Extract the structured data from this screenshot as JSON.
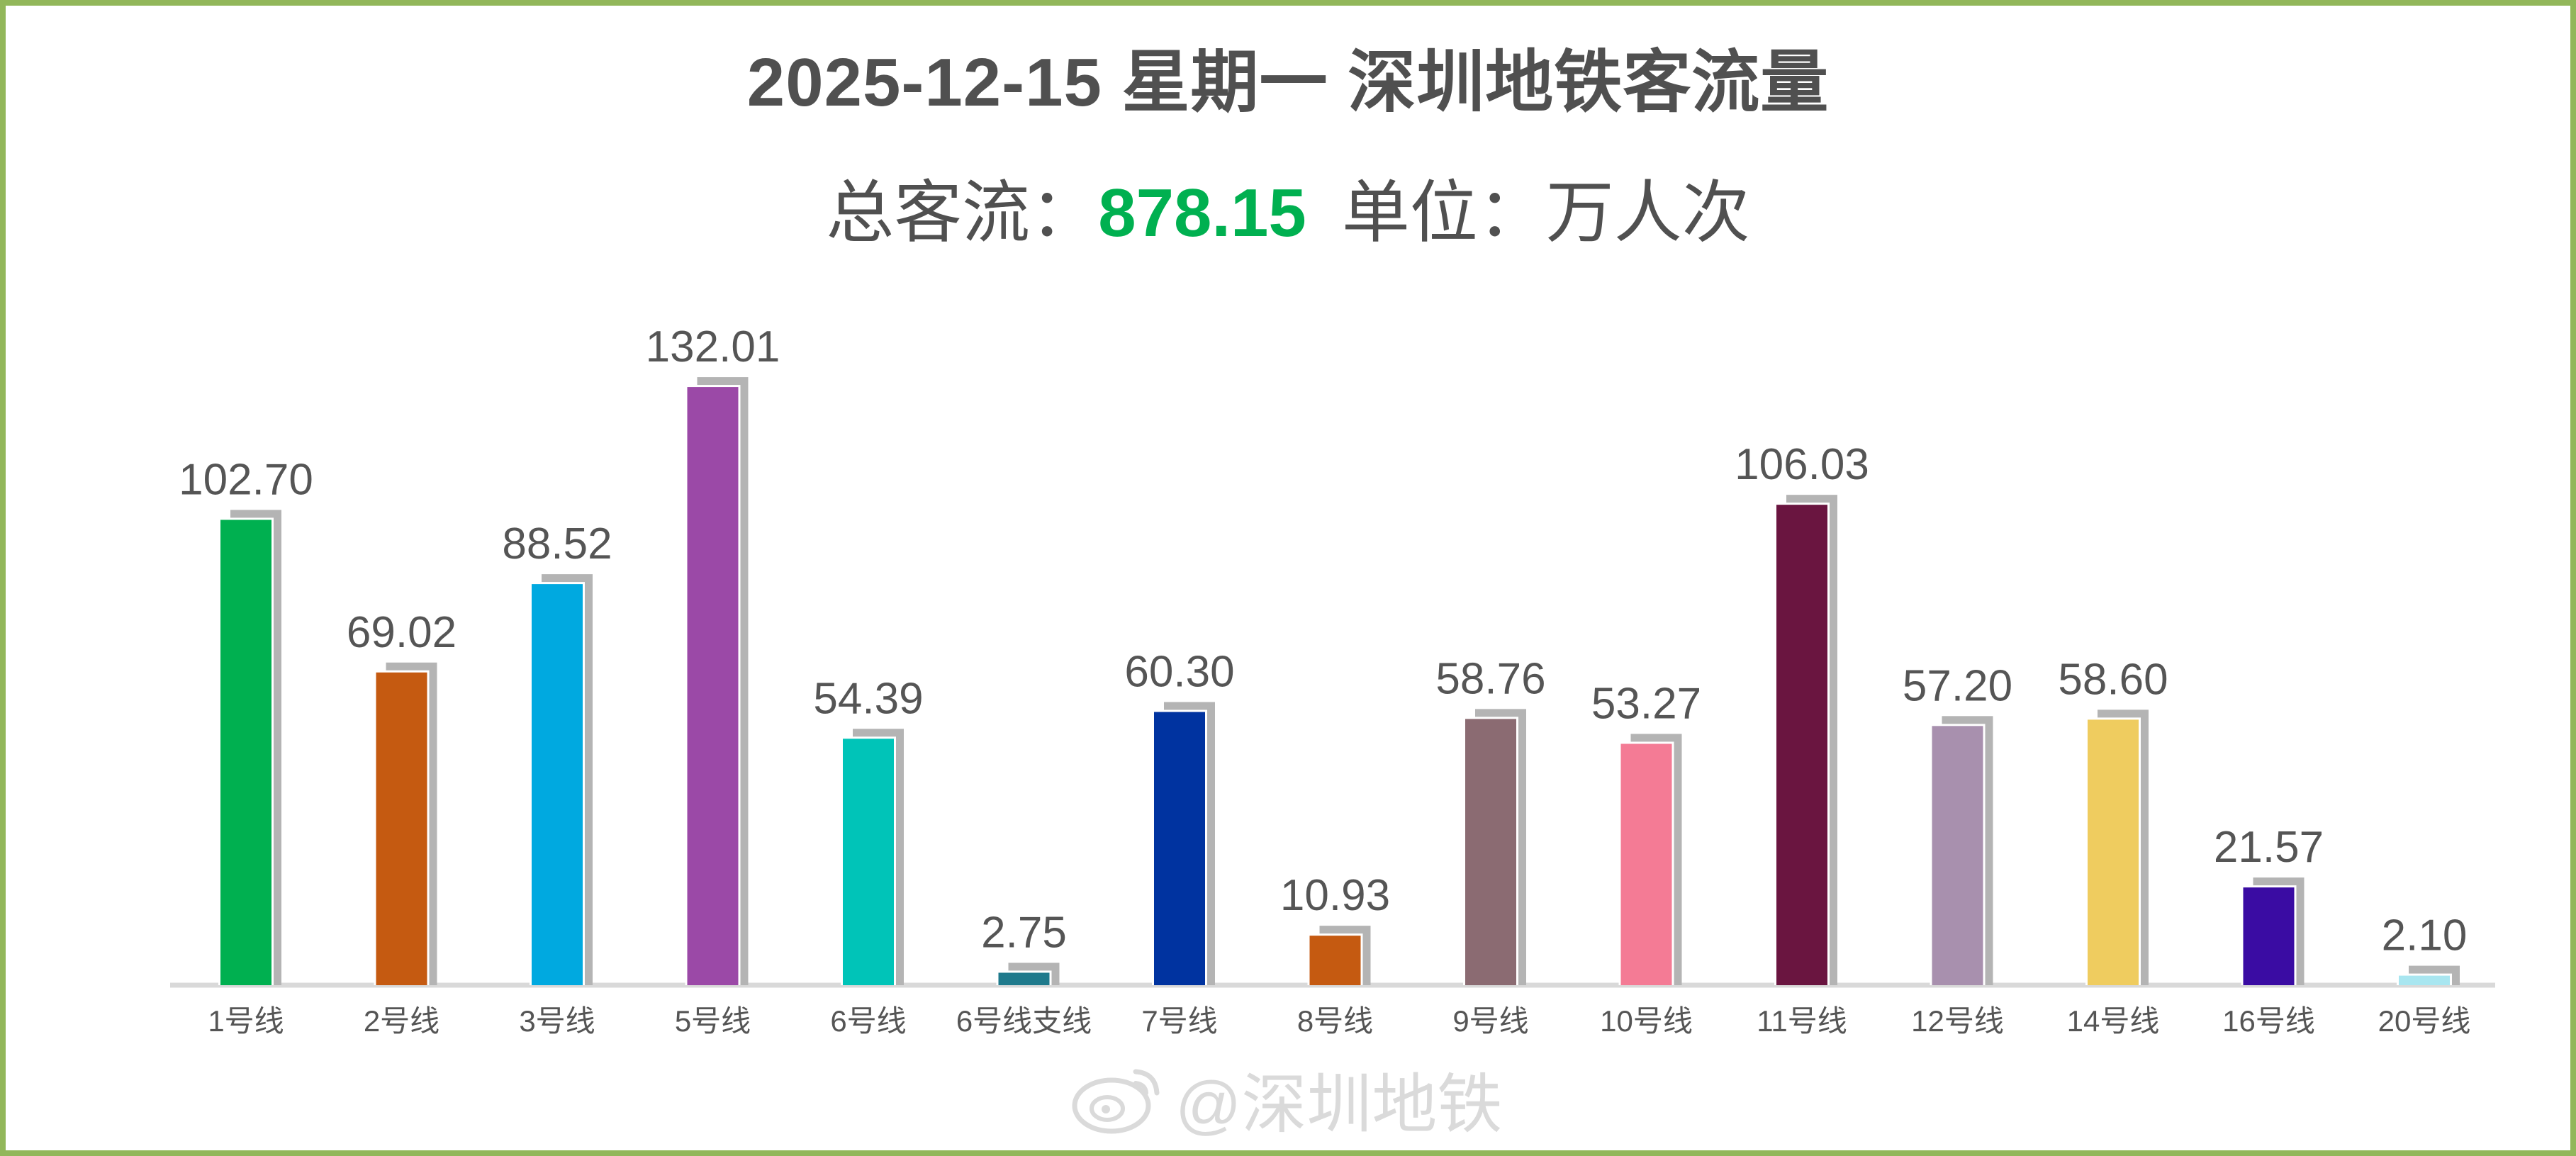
{
  "title": "2025-12-15 星期一 深圳地铁客流量",
  "subtitle": {
    "total_label": "总客流：",
    "total_value": "878.15",
    "unit_label": "单位：万人次"
  },
  "watermark": "@深圳地铁",
  "colors": {
    "frame": "#92b75a",
    "total_highlight": "#00b050",
    "bar_shadow": "#b4b4b4",
    "baseline": "#d9d9d9"
  },
  "chart_data": {
    "type": "bar",
    "categories": [
      "1号线",
      "2号线",
      "3号线",
      "5号线",
      "6号线",
      "6号线支线",
      "7号线",
      "8号线",
      "9号线",
      "10号线",
      "11号线",
      "12号线",
      "14号线",
      "16号线",
      "20号线"
    ],
    "values": [
      102.7,
      69.02,
      88.52,
      132.01,
      54.39,
      2.75,
      60.3,
      10.93,
      58.76,
      53.27,
      106.03,
      57.2,
      58.6,
      21.57,
      2.1
    ],
    "value_labels": [
      "102.70",
      "69.02",
      "88.52",
      "132.01",
      "54.39",
      "2.75",
      "60.30",
      "10.93",
      "58.76",
      "53.27",
      "106.03",
      "57.20",
      "58.60",
      "21.57",
      "2.10"
    ],
    "bar_colors": [
      "#00b050",
      "#c55a11",
      "#00a9e0",
      "#9b49a7",
      "#00c4b8",
      "#1f7a8c",
      "#0033a0",
      "#c55a11",
      "#8b6b72",
      "#f47b95",
      "#6a1540",
      "#a890ae",
      "#efcc5f",
      "#3a0ca3",
      "#a8e6f0"
    ],
    "ylim": [
      0,
      140
    ],
    "grid": false,
    "legend": "none"
  }
}
